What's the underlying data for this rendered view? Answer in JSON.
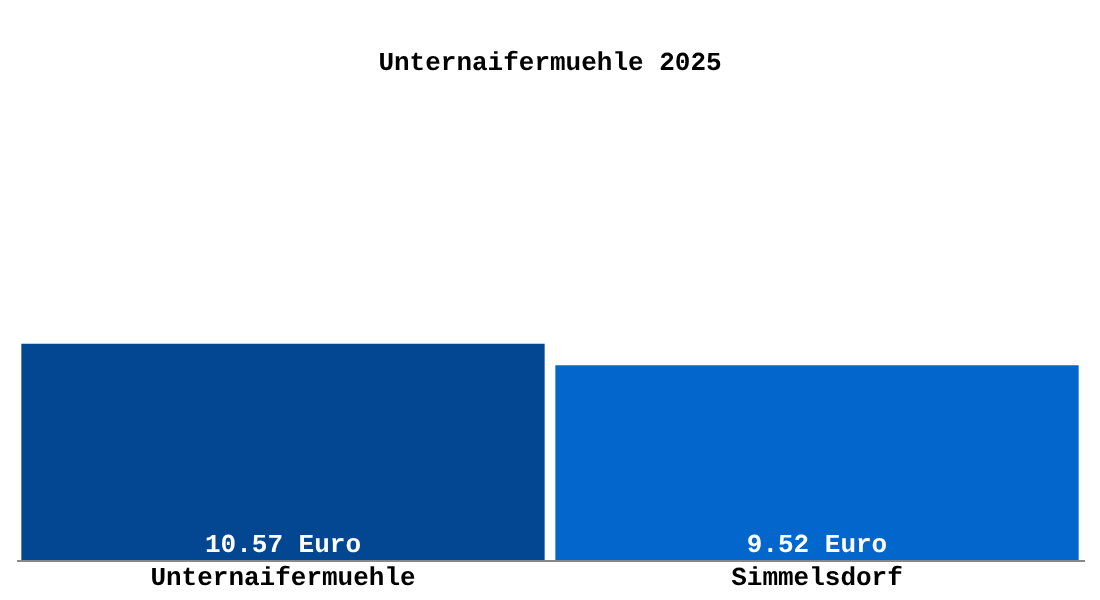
{
  "chart_data": {
    "type": "bar",
    "title": "Unternaifermuehle 2025",
    "categories": [
      "Unternaifermuehle",
      "Simmelsdorf"
    ],
    "values": [
      10.57,
      9.52
    ],
    "colors": [
      "#034792",
      "#0366cc"
    ],
    "value_labels": [
      "10.57 Euro",
      "9.52 Euro"
    ]
  }
}
